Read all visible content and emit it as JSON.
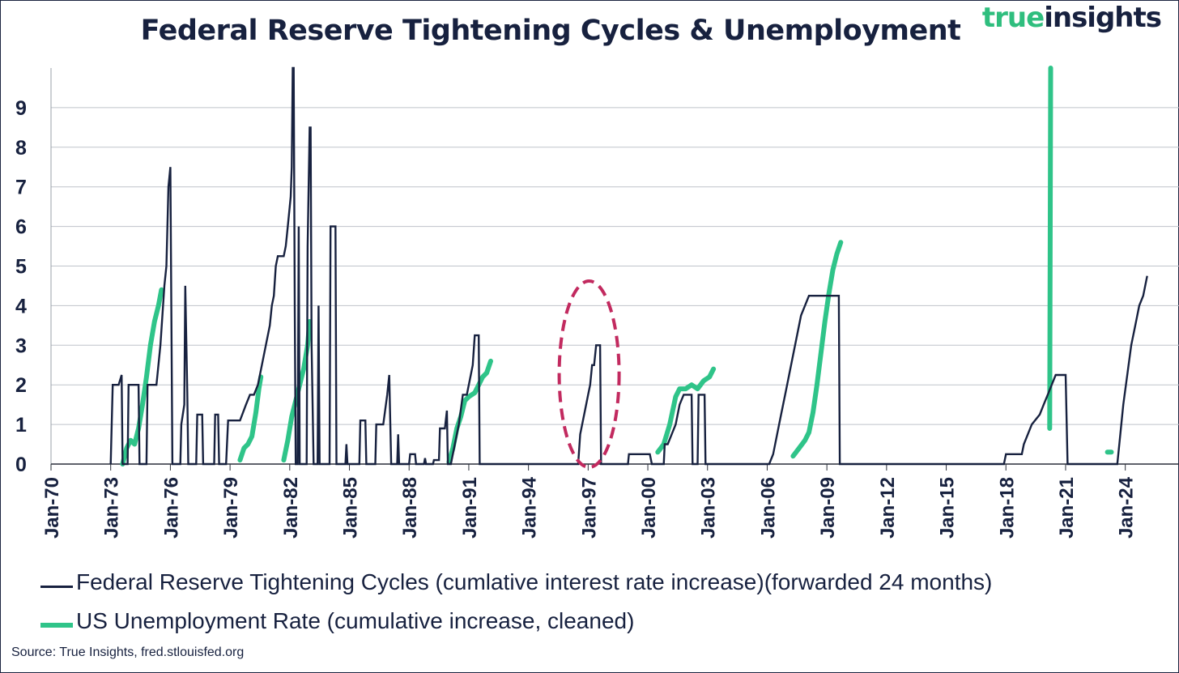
{
  "header": {
    "title": "Federal Reserve Tightening Cycles & Unemployment",
    "logo_part1": "true",
    "logo_part2": "insights"
  },
  "source": "Source: True Insights, fred.stlouisfed.org",
  "colors": {
    "navy": "#17213f",
    "green": "#2fc489",
    "highlight": "#c22a5f",
    "grid": "#bfc3ca"
  },
  "chart_data": {
    "type": "line",
    "x_ticks": [
      "Jan-70",
      "Jan-73",
      "Jan-76",
      "Jan-79",
      "Jan-82",
      "Jan-85",
      "Jan-88",
      "Jan-91",
      "Jan-94",
      "Jan-97",
      "Jan-00",
      "Jan-03",
      "Jan-06",
      "Jan-09",
      "Jan-12",
      "Jan-15",
      "Jan-18",
      "Jan-21",
      "Jan-24"
    ],
    "y_ticks": [
      0,
      1,
      2,
      3,
      4,
      5,
      6,
      7,
      8,
      9
    ],
    "xlim": [
      1970.0,
      2026.7
    ],
    "ylim": [
      0,
      10
    ],
    "grid": true,
    "legend_position": "bottom",
    "annotation": "dashed ellipse highlighting the 1996-1998 tightening cycle",
    "series": [
      {
        "name": "Federal Reserve Tightening Cycles (cumlative interest rate increase)(forwarded 24 months)",
        "color": "#17213f",
        "points": [
          [
            1973.0,
            0
          ],
          [
            1973.1,
            2.0
          ],
          [
            1973.4,
            2.0
          ],
          [
            1973.55,
            2.25
          ],
          [
            1973.6,
            0
          ],
          [
            1973.85,
            0
          ],
          [
            1973.9,
            2.0
          ],
          [
            1974.4,
            2.0
          ],
          [
            1974.45,
            0
          ],
          [
            1974.8,
            0
          ],
          [
            1974.85,
            2.0
          ],
          [
            1975.3,
            2.0
          ],
          [
            1975.5,
            3.0
          ],
          [
            1975.7,
            4.5
          ],
          [
            1975.8,
            5.0
          ],
          [
            1975.9,
            7.0
          ],
          [
            1976.0,
            7.5
          ],
          [
            1976.1,
            0
          ],
          [
            1976.5,
            0
          ],
          [
            1976.55,
            1.0
          ],
          [
            1976.7,
            1.5
          ],
          [
            1976.75,
            4.5
          ],
          [
            1976.85,
            1.8
          ],
          [
            1976.9,
            0
          ],
          [
            1977.3,
            0
          ],
          [
            1977.35,
            1.25
          ],
          [
            1977.6,
            1.25
          ],
          [
            1977.65,
            0
          ],
          [
            1978.2,
            0
          ],
          [
            1978.25,
            1.25
          ],
          [
            1978.4,
            1.25
          ],
          [
            1978.45,
            0
          ],
          [
            1978.8,
            0
          ],
          [
            1978.9,
            1.1
          ],
          [
            1979.5,
            1.1
          ],
          [
            1979.8,
            1.5
          ],
          [
            1980.0,
            1.75
          ],
          [
            1980.2,
            1.75
          ],
          [
            1980.4,
            2.0
          ],
          [
            1980.6,
            2.5
          ],
          [
            1980.8,
            3.0
          ],
          [
            1981.0,
            3.5
          ],
          [
            1981.1,
            4.0
          ],
          [
            1981.2,
            4.25
          ],
          [
            1981.3,
            5.0
          ],
          [
            1981.4,
            5.25
          ],
          [
            1981.7,
            5.25
          ],
          [
            1981.8,
            5.5
          ],
          [
            1981.9,
            6.0
          ],
          [
            1982.0,
            6.5
          ],
          [
            1982.05,
            6.75
          ],
          [
            1982.1,
            7.5
          ],
          [
            1982.15,
            10.0
          ],
          [
            1982.2,
            10.0
          ],
          [
            1982.25,
            4.0
          ],
          [
            1982.3,
            0
          ],
          [
            1982.4,
            0
          ],
          [
            1982.45,
            6.0
          ],
          [
            1982.5,
            0
          ],
          [
            1982.85,
            0
          ],
          [
            1982.9,
            5.5
          ],
          [
            1983.0,
            8.5
          ],
          [
            1983.05,
            8.5
          ],
          [
            1983.1,
            3.0
          ],
          [
            1983.2,
            0
          ],
          [
            1983.4,
            0
          ],
          [
            1983.45,
            4.0
          ],
          [
            1983.5,
            0
          ],
          [
            1984.0,
            0
          ],
          [
            1984.05,
            6.0
          ],
          [
            1984.3,
            6.0
          ],
          [
            1984.35,
            0
          ],
          [
            1984.8,
            0
          ],
          [
            1984.85,
            0.5
          ],
          [
            1984.9,
            0
          ],
          [
            1985.5,
            0
          ],
          [
            1985.55,
            1.1
          ],
          [
            1985.8,
            1.1
          ],
          [
            1985.85,
            0
          ],
          [
            1986.3,
            0
          ],
          [
            1986.35,
            1.0
          ],
          [
            1986.7,
            1.0
          ],
          [
            1986.9,
            1.75
          ],
          [
            1987.0,
            2.25
          ],
          [
            1987.1,
            0
          ],
          [
            1987.4,
            0
          ],
          [
            1987.45,
            0.75
          ],
          [
            1987.5,
            0
          ],
          [
            1988.0,
            0
          ],
          [
            1988.05,
            0.25
          ],
          [
            1988.3,
            0.25
          ],
          [
            1988.35,
            0
          ],
          [
            1988.75,
            0
          ],
          [
            1988.8,
            0.15
          ],
          [
            1988.85,
            0
          ],
          [
            1989.2,
            0
          ],
          [
            1989.25,
            0.1
          ],
          [
            1989.5,
            0.1
          ],
          [
            1989.55,
            0.9
          ],
          [
            1989.8,
            0.9
          ],
          [
            1989.9,
            1.35
          ],
          [
            1989.95,
            0
          ],
          [
            1990.1,
            0
          ],
          [
            1990.3,
            0.5
          ],
          [
            1990.5,
            1.0
          ],
          [
            1990.7,
            1.75
          ],
          [
            1990.9,
            1.75
          ],
          [
            1991.1,
            2.25
          ],
          [
            1991.2,
            2.5
          ],
          [
            1991.3,
            3.25
          ],
          [
            1991.5,
            3.25
          ],
          [
            1991.55,
            0
          ],
          [
            1996.5,
            0
          ],
          [
            1996.6,
            0.75
          ],
          [
            1996.8,
            1.25
          ],
          [
            1997.0,
            1.75
          ],
          [
            1997.1,
            2.0
          ],
          [
            1997.2,
            2.5
          ],
          [
            1997.3,
            2.5
          ],
          [
            1997.4,
            3.0
          ],
          [
            1997.6,
            3.0
          ],
          [
            1997.65,
            0
          ],
          [
            1999.0,
            0
          ],
          [
            1999.05,
            0.25
          ],
          [
            1999.9,
            0.25
          ],
          [
            2000.1,
            0.25
          ],
          [
            2000.2,
            0
          ],
          [
            2000.8,
            0
          ],
          [
            2000.85,
            0.5
          ],
          [
            2001.0,
            0.5
          ],
          [
            2001.2,
            0.75
          ],
          [
            2001.4,
            1.0
          ],
          [
            2001.6,
            1.5
          ],
          [
            2001.8,
            1.75
          ],
          [
            2002.2,
            1.75
          ],
          [
            2002.25,
            0
          ],
          [
            2002.5,
            0
          ],
          [
            2002.55,
            1.75
          ],
          [
            2002.85,
            1.75
          ],
          [
            2002.9,
            0
          ],
          [
            2006.1,
            0
          ],
          [
            2006.3,
            0.25
          ],
          [
            2006.5,
            0.75
          ],
          [
            2006.7,
            1.25
          ],
          [
            2006.9,
            1.75
          ],
          [
            2007.1,
            2.25
          ],
          [
            2007.3,
            2.75
          ],
          [
            2007.5,
            3.25
          ],
          [
            2007.7,
            3.75
          ],
          [
            2007.9,
            4.0
          ],
          [
            2008.1,
            4.25
          ],
          [
            2009.6,
            4.25
          ],
          [
            2009.65,
            0
          ],
          [
            2017.9,
            0
          ],
          [
            2018.0,
            0.25
          ],
          [
            2018.8,
            0.25
          ],
          [
            2018.9,
            0.5
          ],
          [
            2019.1,
            0.75
          ],
          [
            2019.3,
            1.0
          ],
          [
            2019.7,
            1.25
          ],
          [
            2019.9,
            1.5
          ],
          [
            2020.1,
            1.75
          ],
          [
            2020.3,
            2.0
          ],
          [
            2020.5,
            2.25
          ],
          [
            2021.0,
            2.25
          ],
          [
            2021.1,
            0
          ],
          [
            2023.6,
            0
          ],
          [
            2023.7,
            0.5
          ],
          [
            2023.9,
            1.5
          ],
          [
            2024.1,
            2.25
          ],
          [
            2024.3,
            3.0
          ],
          [
            2024.5,
            3.5
          ],
          [
            2024.7,
            4.0
          ],
          [
            2024.9,
            4.25
          ],
          [
            2025.1,
            4.75
          ]
        ]
      },
      {
        "name": "US Unemployment Rate (cumulative increase, cleaned)",
        "color": "#2fc489",
        "segments": [
          [
            [
              1973.6,
              0
            ],
            [
              1973.8,
              0.4
            ],
            [
              1974.0,
              0.6
            ],
            [
              1974.2,
              0.5
            ],
            [
              1974.4,
              0.9
            ],
            [
              1974.6,
              1.5
            ],
            [
              1974.8,
              2.2
            ],
            [
              1975.0,
              3.0
            ],
            [
              1975.2,
              3.6
            ],
            [
              1975.4,
              4.0
            ],
            [
              1975.55,
              4.4
            ]
          ],
          [
            [
              1979.5,
              0.1
            ],
            [
              1979.7,
              0.4
            ],
            [
              1979.9,
              0.5
            ],
            [
              1980.1,
              0.7
            ],
            [
              1980.3,
              1.3
            ],
            [
              1980.45,
              1.9
            ],
            [
              1980.55,
              2.2
            ]
          ],
          [
            [
              1981.7,
              0.1
            ],
            [
              1981.9,
              0.6
            ],
            [
              1982.1,
              1.2
            ],
            [
              1982.3,
              1.6
            ],
            [
              1982.5,
              2.0
            ],
            [
              1982.7,
              2.4
            ],
            [
              1982.9,
              3.0
            ],
            [
              1983.0,
              3.6
            ]
          ],
          [
            [
              1990.0,
              0.05
            ],
            [
              1990.2,
              0.4
            ],
            [
              1990.4,
              0.9
            ],
            [
              1990.6,
              1.2
            ],
            [
              1990.8,
              1.6
            ],
            [
              1991.0,
              1.7
            ],
            [
              1991.3,
              1.8
            ],
            [
              1991.5,
              2.0
            ],
            [
              1991.7,
              2.2
            ],
            [
              1991.9,
              2.3
            ],
            [
              1992.1,
              2.6
            ]
          ],
          [
            [
              2000.5,
              0.3
            ],
            [
              2000.8,
              0.5
            ],
            [
              2001.1,
              1.0
            ],
            [
              2001.4,
              1.7
            ],
            [
              2001.6,
              1.9
            ],
            [
              2001.9,
              1.9
            ],
            [
              2002.2,
              2.0
            ],
            [
              2002.5,
              1.9
            ],
            [
              2002.8,
              2.1
            ],
            [
              2003.1,
              2.2
            ],
            [
              2003.3,
              2.4
            ]
          ],
          [
            [
              2007.3,
              0.2
            ],
            [
              2007.6,
              0.4
            ],
            [
              2007.9,
              0.6
            ],
            [
              2008.1,
              0.8
            ],
            [
              2008.3,
              1.3
            ],
            [
              2008.5,
              2.0
            ],
            [
              2008.7,
              2.8
            ],
            [
              2008.9,
              3.6
            ],
            [
              2009.1,
              4.3
            ],
            [
              2009.3,
              4.9
            ],
            [
              2009.5,
              5.3
            ],
            [
              2009.7,
              5.6
            ]
          ],
          [
            [
              2020.2,
              0.9
            ],
            [
              2020.25,
              10.0
            ]
          ],
          [
            [
              2023.1,
              0.3
            ],
            [
              2023.3,
              0.3
            ]
          ]
        ]
      }
    ]
  }
}
